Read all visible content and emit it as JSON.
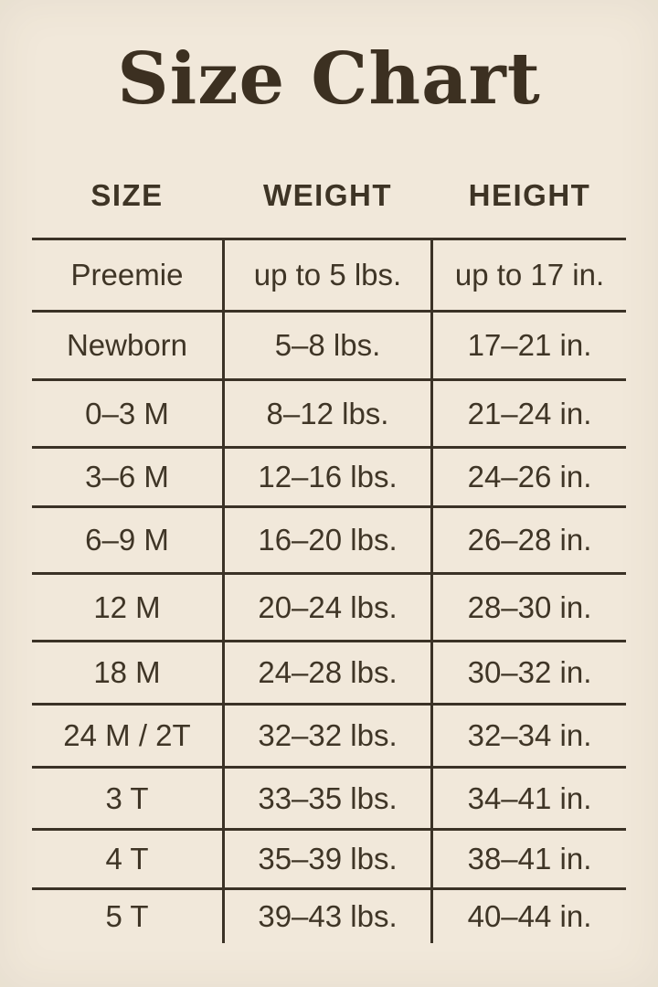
{
  "colors": {
    "background": "#f1e8da",
    "title_text": "#3c3021",
    "body_text": "#3f3526",
    "rule_lines": "#3b3226"
  },
  "chart_data": {
    "type": "table",
    "title": "Size Chart",
    "columns": [
      "SIZE",
      "WEIGHT",
      "HEIGHT"
    ],
    "rows": [
      [
        "Preemie",
        "up to 5 lbs.",
        "up to 17 in."
      ],
      [
        "Newborn",
        "5–8 lbs.",
        "17–21 in."
      ],
      [
        "0–3 M",
        "8–12 lbs.",
        "21–24 in."
      ],
      [
        "3–6 M",
        "12–16 lbs.",
        "24–26 in."
      ],
      [
        "6–9 M",
        "16–20 lbs.",
        "26–28 in."
      ],
      [
        "12 M",
        "20–24 lbs.",
        "28–30 in."
      ],
      [
        "18 M",
        "24–28 lbs.",
        "30–32 in."
      ],
      [
        "24 M / 2T",
        "32–32 lbs.",
        "32–34 in."
      ],
      [
        "3 T",
        "33–35 lbs.",
        "34–41 in."
      ],
      [
        "4 T",
        "35–39 lbs.",
        "38–41 in."
      ],
      [
        "5 T",
        "39–43 lbs.",
        "40–44 in."
      ]
    ],
    "layout": {
      "grid": "horizontal rules between all rows, no outer border, no rule below last row",
      "column_separators": "vertical rules between columns extending below last row"
    }
  }
}
